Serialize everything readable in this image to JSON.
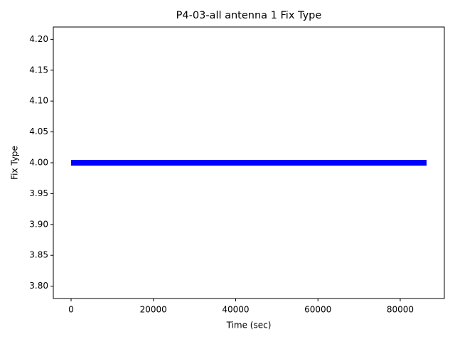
{
  "chart_data": {
    "type": "line",
    "title": "P4-03-all antenna 1 Fix Type",
    "x_label": "Time (sec)",
    "y_label": "Fix Type",
    "x": [
      0,
      86400
    ],
    "values": [
      4,
      4
    ],
    "color": "#0000ff",
    "xlim": [
      -4320,
      90720
    ],
    "xticks": [
      0,
      20000,
      40000,
      60000,
      80000
    ],
    "ylim": [
      3.78,
      4.22
    ],
    "yticks": [
      {
        "value": 3.8,
        "label": "3.80"
      },
      {
        "value": 3.85,
        "label": "3.85"
      },
      {
        "value": 3.9,
        "label": "3.90"
      },
      {
        "value": 3.95,
        "label": "3.95"
      },
      {
        "value": 4.0,
        "label": "4.00"
      },
      {
        "value": 4.05,
        "label": "4.05"
      },
      {
        "value": 4.1,
        "label": "4.10"
      },
      {
        "value": 4.15,
        "label": "4.15"
      },
      {
        "value": 4.2,
        "label": "4.20"
      }
    ]
  }
}
